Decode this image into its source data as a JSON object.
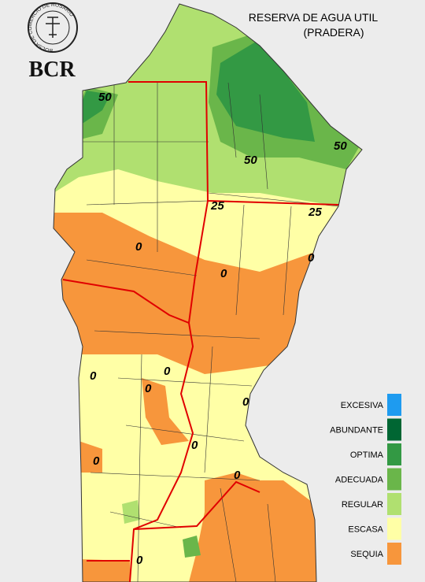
{
  "header": {
    "title_line1": "RESERVA DE AGUA UTIL",
    "title_line2": "(PRADERA)"
  },
  "logo": {
    "text": "BCR",
    "ring_text": "BOLSA DE COMERCIO DE ROSARIO"
  },
  "legend": [
    {
      "label": "EXCESIVA",
      "color": "#1e9bf0"
    },
    {
      "label": "ABUNDANTE",
      "color": "#006633"
    },
    {
      "label": "OPTIMA",
      "color": "#339944"
    },
    {
      "label": "ADECUADA",
      "color": "#6ab64a"
    },
    {
      "label": "REGULAR",
      "color": "#b0e070"
    },
    {
      "label": "ESCASA",
      "color": "#ffffa6"
    },
    {
      "label": "SEQUIA",
      "color": "#f7963c"
    }
  ],
  "contour_labels": [
    "50",
    "50",
    "50",
    "25",
    "25",
    "0",
    "0",
    "0",
    "0",
    "0",
    "0",
    "0",
    "0",
    "0",
    "0",
    "0"
  ]
}
